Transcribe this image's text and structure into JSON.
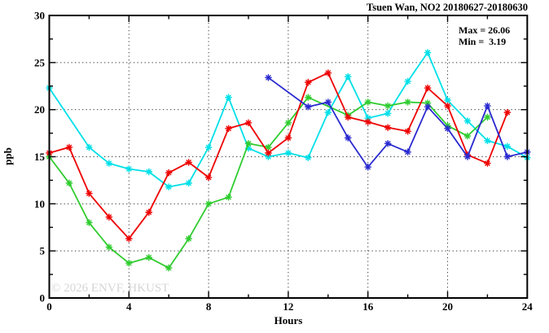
{
  "title": "Tsuen Wan, NO2 20180627-20180630",
  "stats": {
    "max_label": "Max = 26.06",
    "min_label": "Min =  3.19"
  },
  "watermark": "© 2026 ENVF, HKUST",
  "axes": {
    "xlabel": "Hours",
    "ylabel": "ppb",
    "xticks": [
      0,
      4,
      8,
      12,
      16,
      20,
      24
    ],
    "xminorticks": [
      2,
      6,
      10,
      14,
      18,
      22
    ],
    "yticks": [
      0,
      5,
      10,
      15,
      20,
      25,
      30
    ],
    "yminorticks": [
      2.5,
      7.5,
      12.5,
      17.5,
      22.5,
      27.5
    ],
    "xgrid": [
      4,
      8,
      12,
      16,
      20
    ],
    "ygrid": [
      5,
      10,
      15,
      20,
      25
    ],
    "xlim": [
      0,
      24
    ],
    "ylim": [
      0,
      30
    ]
  },
  "chart_data": {
    "type": "line",
    "title": "Tsuen Wan, NO2 20180627-20180630",
    "xlabel": "Hours",
    "ylabel": "ppb",
    "xlim": [
      0,
      24
    ],
    "ylim": [
      0,
      30
    ],
    "grid": true,
    "legend": "none",
    "marker": "asterisk",
    "max": 26.06,
    "min": 3.19,
    "series": [
      {
        "name": "series-cyan",
        "color": "#00E0E8",
        "points": [
          [
            0,
            22.3
          ],
          [
            2,
            16.0
          ],
          [
            3,
            14.3
          ],
          [
            4,
            13.7
          ],
          [
            5,
            13.4
          ],
          [
            6,
            11.8
          ],
          [
            7,
            12.2
          ],
          [
            8,
            16.0
          ],
          [
            9,
            21.3
          ],
          [
            10,
            15.9
          ],
          [
            11,
            15.0
          ],
          [
            12,
            15.4
          ],
          [
            13,
            14.9
          ],
          [
            14,
            19.7
          ],
          [
            15,
            23.5
          ],
          [
            16,
            19.1
          ],
          [
            17,
            19.6
          ],
          [
            18,
            23.0
          ],
          [
            19,
            26.06
          ],
          [
            20,
            21.0
          ],
          [
            21,
            18.8
          ],
          [
            22,
            16.7
          ],
          [
            23,
            16.1
          ],
          [
            24,
            14.9
          ]
        ]
      },
      {
        "name": "series-green",
        "color": "#2FCC2F",
        "points": [
          [
            0,
            15.0
          ],
          [
            1,
            12.2
          ],
          [
            2,
            8.0
          ],
          [
            3,
            5.4
          ],
          [
            4,
            3.7
          ],
          [
            5,
            4.3
          ],
          [
            6,
            3.19
          ],
          [
            7,
            6.3
          ],
          [
            8,
            10.0
          ],
          [
            9,
            10.7
          ],
          [
            10,
            16.4
          ],
          [
            11,
            16.0
          ],
          [
            12,
            18.6
          ],
          [
            13,
            21.3
          ],
          [
            15,
            19.4
          ],
          [
            16,
            20.8
          ],
          [
            17,
            20.4
          ],
          [
            18,
            20.8
          ],
          [
            19,
            20.7
          ],
          [
            20,
            18.3
          ],
          [
            21,
            17.2
          ],
          [
            22,
            19.2
          ]
        ]
      },
      {
        "name": "series-red",
        "color": "#EE0000",
        "points": [
          [
            0,
            15.4
          ],
          [
            1,
            16.0
          ],
          [
            2,
            11.1
          ],
          [
            3,
            8.6
          ],
          [
            4,
            6.3
          ],
          [
            5,
            9.1
          ],
          [
            6,
            13.3
          ],
          [
            7,
            14.4
          ],
          [
            8,
            12.8
          ],
          [
            9,
            18.0
          ],
          [
            10,
            18.6
          ],
          [
            11,
            15.4
          ],
          [
            12,
            17.0
          ],
          [
            13,
            22.9
          ],
          [
            14,
            23.9
          ],
          [
            15,
            19.2
          ],
          [
            16,
            18.7
          ],
          [
            17,
            18.1
          ],
          [
            18,
            17.7
          ],
          [
            19,
            22.3
          ],
          [
            20,
            20.4
          ],
          [
            21,
            15.2
          ],
          [
            22,
            14.3
          ],
          [
            23,
            19.7
          ]
        ]
      },
      {
        "name": "series-blue",
        "color": "#2A2AD0",
        "points": [
          [
            11,
            23.4
          ],
          [
            13,
            20.3
          ],
          [
            14,
            20.8
          ],
          [
            15,
            17.0
          ],
          [
            16,
            13.9
          ],
          [
            17,
            16.4
          ],
          [
            18,
            15.5
          ],
          [
            19,
            20.3
          ],
          [
            20,
            18.0
          ],
          [
            21,
            15.0
          ],
          [
            22,
            20.4
          ],
          [
            23,
            15.0
          ],
          [
            24,
            15.5
          ]
        ]
      }
    ]
  }
}
